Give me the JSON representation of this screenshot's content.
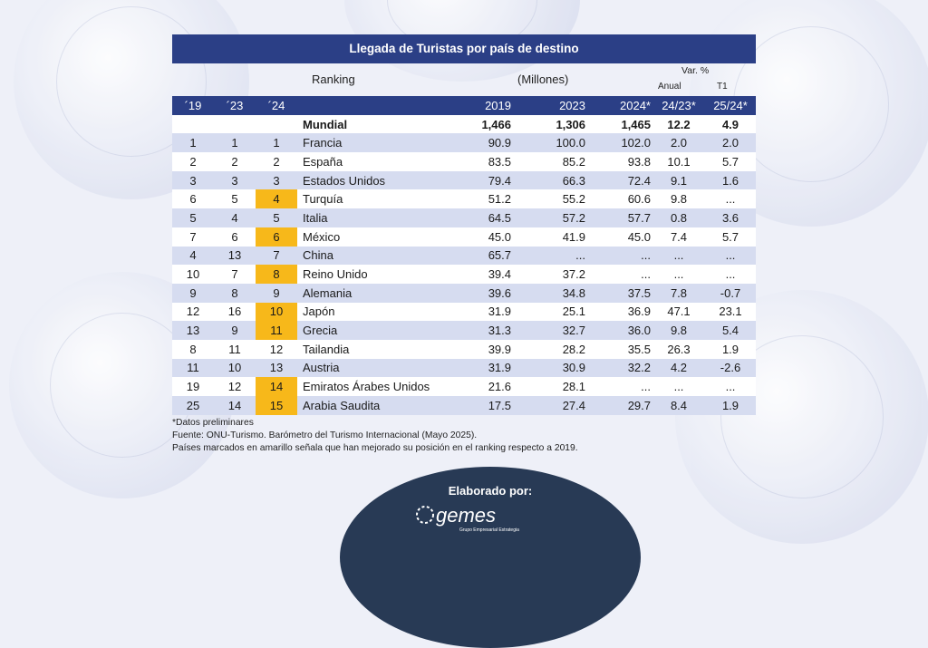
{
  "title": "Llegada de Turistas por país de destino",
  "subheader": {
    "ranking": "Ranking",
    "millones": "(Millones)",
    "var": "Var. %",
    "anual": "Anual",
    "t1": "T1"
  },
  "columns": [
    "´19",
    "´23",
    "´24",
    "",
    "2019",
    "2023",
    "2024*",
    "24/23*",
    "25/24*"
  ],
  "world": {
    "name": "Mundial",
    "v2019": "1,466",
    "v2023": "1,306",
    "v2024": "1,465",
    "var1": "12.2",
    "var2": "4.9"
  },
  "rows": [
    {
      "r19": "1",
      "r23": "1",
      "r24": "1",
      "hl": false,
      "name": "Francia",
      "v2019": "90.9",
      "v2023": "100.0",
      "v2024": "102.0",
      "var1": "2.0",
      "var2": "2.0"
    },
    {
      "r19": "2",
      "r23": "2",
      "r24": "2",
      "hl": false,
      "name": "España",
      "v2019": "83.5",
      "v2023": "85.2",
      "v2024": "93.8",
      "var1": "10.1",
      "var2": "5.7"
    },
    {
      "r19": "3",
      "r23": "3",
      "r24": "3",
      "hl": false,
      "name": "Estados Unidos",
      "v2019": "79.4",
      "v2023": "66.3",
      "v2024": "72.4",
      "var1": "9.1",
      "var2": "1.6"
    },
    {
      "r19": "6",
      "r23": "5",
      "r24": "4",
      "hl": true,
      "name": "Turquía",
      "v2019": "51.2",
      "v2023": "55.2",
      "v2024": "60.6",
      "var1": "9.8",
      "var2": "..."
    },
    {
      "r19": "5",
      "r23": "4",
      "r24": "5",
      "hl": false,
      "name": "Italia",
      "v2019": "64.5",
      "v2023": "57.2",
      "v2024": "57.7",
      "var1": "0.8",
      "var2": "3.6"
    },
    {
      "r19": "7",
      "r23": "6",
      "r24": "6",
      "hl": true,
      "name": "México",
      "v2019": "45.0",
      "v2023": "41.9",
      "v2024": "45.0",
      "var1": "7.4",
      "var2": "5.7"
    },
    {
      "r19": "4",
      "r23": "13",
      "r24": "7",
      "hl": false,
      "name": "China",
      "v2019": "65.7",
      "v2023": "...",
      "v2024": "...",
      "var1": "...",
      "var2": "..."
    },
    {
      "r19": "10",
      "r23": "7",
      "r24": "8",
      "hl": true,
      "name": "Reino Unido",
      "v2019": "39.4",
      "v2023": "37.2",
      "v2024": "...",
      "var1": "...",
      "var2": "..."
    },
    {
      "r19": "9",
      "r23": "8",
      "r24": "9",
      "hl": false,
      "name": "Alemania",
      "v2019": "39.6",
      "v2023": "34.8",
      "v2024": "37.5",
      "var1": "7.8",
      "var2": "-0.7"
    },
    {
      "r19": "12",
      "r23": "16",
      "r24": "10",
      "hl": true,
      "name": "Japón",
      "v2019": "31.9",
      "v2023": "25.1",
      "v2024": "36.9",
      "var1": "47.1",
      "var2": "23.1"
    },
    {
      "r19": "13",
      "r23": "9",
      "r24": "11",
      "hl": true,
      "name": "Grecia",
      "v2019": "31.3",
      "v2023": "32.7",
      "v2024": "36.0",
      "var1": "9.8",
      "var2": "5.4"
    },
    {
      "r19": "8",
      "r23": "11",
      "r24": "12",
      "hl": false,
      "name": "Tailandia",
      "v2019": "39.9",
      "v2023": "28.2",
      "v2024": "35.5",
      "var1": "26.3",
      "var2": "1.9"
    },
    {
      "r19": "11",
      "r23": "10",
      "r24": "13",
      "hl": false,
      "name": "Austria",
      "v2019": "31.9",
      "v2023": "30.9",
      "v2024": "32.2",
      "var1": "4.2",
      "var2": "-2.6"
    },
    {
      "r19": "19",
      "r23": "12",
      "r24": "14",
      "hl": true,
      "name": "Emiratos Árabes Unidos",
      "v2019": "21.6",
      "v2023": "28.1",
      "v2024": "...",
      "var1": "...",
      "var2": "..."
    },
    {
      "r19": "25",
      "r23": "14",
      "r24": "15",
      "hl": true,
      "name": "Arabia Saudita",
      "v2019": "17.5",
      "v2023": "27.4",
      "v2024": "29.7",
      "var1": "8.4",
      "var2": "1.9"
    }
  ],
  "notes": [
    "*Datos preliminares",
    "Fuente: ONU-Turismo. Barómetro del Turismo Internacional (Mayo 2025).",
    "Países marcados en amarillo señala que han mejorado su posición en el ranking respecto a 2019."
  ],
  "footer": {
    "label": "Elaborado por:",
    "logo": "gemes",
    "logo_sub": "Grupo Empresarial Estrategia"
  },
  "colors": {
    "header": "#2b3f86",
    "stripe": "#d6dcf0",
    "highlight": "#f7b81a",
    "badge": "#283a55"
  }
}
